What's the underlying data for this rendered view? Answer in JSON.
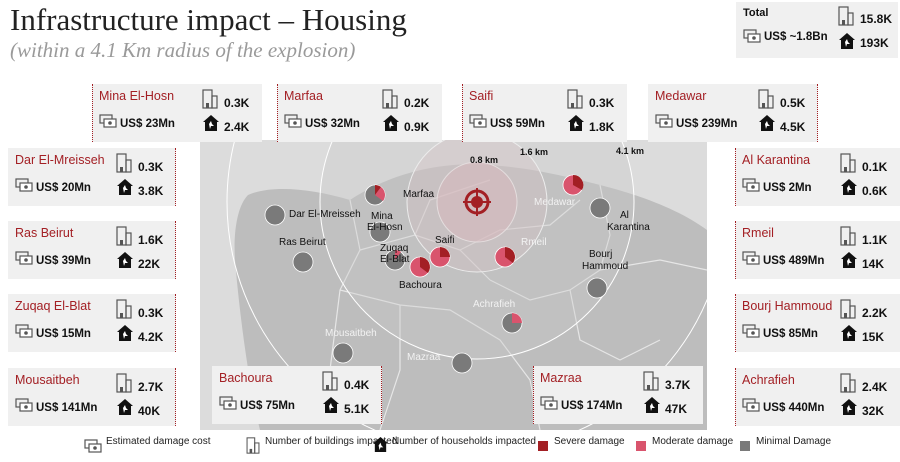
{
  "header": {
    "title": "Infrastructure impact – Housing",
    "subtitle": "(within a 4.1 Km radius of the explosion)"
  },
  "colors": {
    "severe": "#a31f24",
    "moderate": "#d9546d",
    "minimal": "#7a7a7a",
    "accent": "#a31f24"
  },
  "total": {
    "name": "Total",
    "cost": "US$ ~1.8Bn",
    "buildings": "15.8K",
    "households": "193K"
  },
  "areas": [
    {
      "name": "Mina El-Hosn",
      "cost": "US$ 23Mn",
      "buildings": "0.3K",
      "households": "2.4K"
    },
    {
      "name": "Marfaa",
      "cost": "US$ 32Mn",
      "buildings": "0.2K",
      "households": "0.9K"
    },
    {
      "name": "Saifi",
      "cost": "US$ 59Mn",
      "buildings": "0.3K",
      "households": "1.8K"
    },
    {
      "name": "Medawar",
      "cost": "US$ 239Mn",
      "buildings": "0.5K",
      "households": "4.5K"
    },
    {
      "name": "Dar El-Mreisseh",
      "cost": "US$ 20Mn",
      "buildings": "0.3K",
      "households": "3.8K"
    },
    {
      "name": "Al Karantina",
      "cost": "US$ 2Mn",
      "buildings": "0.1K",
      "households": "0.6K"
    },
    {
      "name": "Ras Beirut",
      "cost": "US$ 39Mn",
      "buildings": "1.6K",
      "households": "22K"
    },
    {
      "name": "Rmeil",
      "cost": "US$ 489Mn",
      "buildings": "1.1K",
      "households": "14K"
    },
    {
      "name": "Zuqaq El-Blat",
      "cost": "US$ 15Mn",
      "buildings": "0.3K",
      "households": "4.2K"
    },
    {
      "name": "Bourj Hammoud",
      "cost": "US$ 85Mn",
      "buildings": "2.2K",
      "households": "15K"
    },
    {
      "name": "Mousaitbeh",
      "cost": "US$ 141Mn",
      "buildings": "2.7K",
      "households": "40K"
    },
    {
      "name": "Bachoura",
      "cost": "US$ 75Mn",
      "buildings": "0.4K",
      "households": "5.1K"
    },
    {
      "name": "Mazraa",
      "cost": "US$ 174Mn",
      "buildings": "3.7K",
      "households": "47K"
    },
    {
      "name": "Achrafieh",
      "cost": "US$ 440Mn",
      "buildings": "2.4K",
      "households": "32K"
    }
  ],
  "map": {
    "radius_labels": [
      "0.8 km",
      "1.6 km",
      "4.1 km"
    ],
    "labels": {
      "marfaa": "Marfaa",
      "dar": "Dar El-Mreisseh",
      "mina1": "Mina",
      "mina2": "El-Hosn",
      "ras": "Ras Beirut",
      "zuqaq1": "Zuqaq",
      "zuqaq2": "El-Blat",
      "saifi": "Saifi",
      "bachoura": "Bachoura",
      "medawar": "Medawar",
      "rmeil": "Rmeil",
      "karantina1": "Al",
      "karantina2": "Karantina",
      "bourj1": "Bourj",
      "bourj2": "Hammoud",
      "achrafieh": "Achrafieh",
      "mousaitbeh": "Mousaitbeh",
      "mazraa": "Mazraa"
    }
  },
  "legend": {
    "cost": "Estimated damage cost",
    "buildings": "Number of buildings impacted",
    "households": "Number of households impacted",
    "severe": "Severe damage",
    "moderate": "Moderate damage",
    "minimal": "Minimal Damage"
  }
}
